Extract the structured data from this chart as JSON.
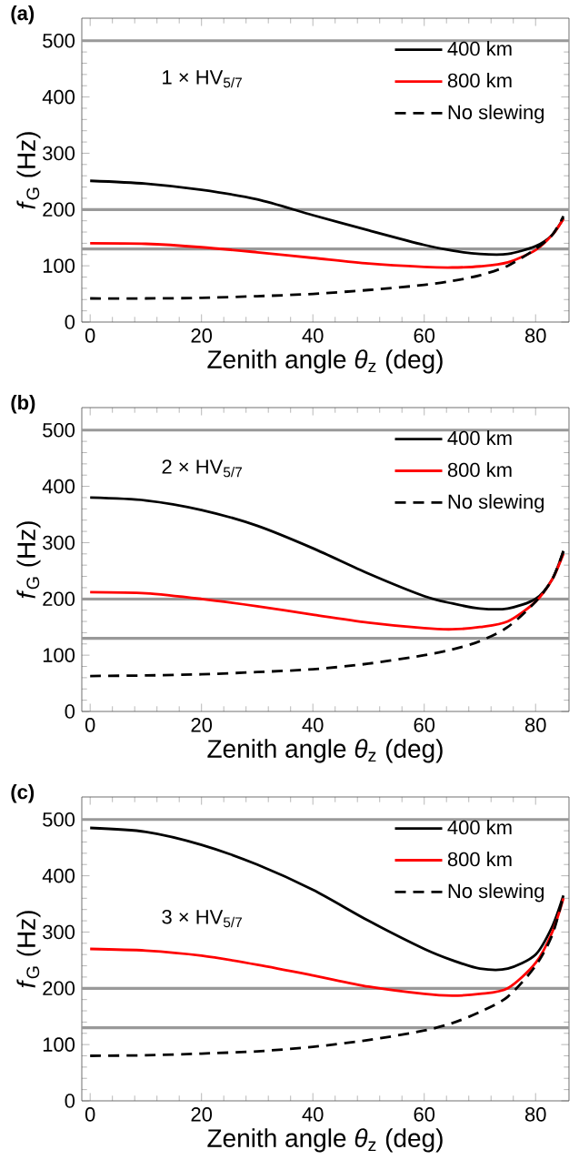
{
  "chart_data": [
    {
      "type": "line",
      "title": "(a)",
      "xlabel": "Zenith angle *θ*$_{z}$ (deg)",
      "ylabel": "*f*$_{G}$ (Hz)",
      "annotations": [
        "1 × HV$_{5/7}$"
      ],
      "xlim": [
        -1.5,
        86
      ],
      "ylim": [
        0,
        540
      ],
      "xticks": [
        0,
        20,
        40,
        60,
        80
      ],
      "yticks": [
        0,
        100,
        200,
        300,
        400,
        500
      ],
      "grid": false,
      "legend": "top right",
      "marker": "none",
      "ref_lines": [
        {
          "axis": "y",
          "value": 130,
          "color": "#999999"
        },
        {
          "axis": "y",
          "value": 200,
          "color": "#999999"
        },
        {
          "axis": "y",
          "value": 500,
          "color": "#999999"
        }
      ],
      "x": [
        0,
        10,
        20,
        30,
        40,
        50,
        60,
        65,
        70,
        75,
        80,
        83,
        85
      ],
      "series": [
        {
          "name": "400 km",
          "color": "#000000",
          "line_style": "solid",
          "values": [
            251,
            246,
            235,
            218,
            190,
            163,
            137,
            127,
            121,
            121,
            135,
            155,
            185
          ]
        },
        {
          "name": "800 km",
          "color": "#ff0000",
          "line_style": "solid",
          "values": [
            140,
            139,
            133,
            124,
            114,
            104,
            98,
            97,
            99,
            106,
            128,
            155,
            183
          ]
        },
        {
          "name": "No slewing",
          "color": "#000000",
          "line_style": "dashed",
          "values": [
            42,
            42,
            43,
            46,
            50,
            57,
            66,
            73,
            83,
            100,
            130,
            155,
            188
          ]
        }
      ]
    },
    {
      "type": "line",
      "title": "(b)",
      "xlabel": "Zenith angle *θ*$_{z}$ (deg)",
      "ylabel": "*f*$_{G}$ (Hz)",
      "annotations": [
        "2 × HV$_{5/7}$"
      ],
      "xlim": [
        -1.5,
        86
      ],
      "ylim": [
        0,
        540
      ],
      "xticks": [
        0,
        20,
        40,
        60,
        80
      ],
      "yticks": [
        0,
        100,
        200,
        300,
        400,
        500
      ],
      "grid": false,
      "legend": "top right",
      "marker": "none",
      "ref_lines": [
        {
          "axis": "y",
          "value": 130,
          "color": "#999999"
        },
        {
          "axis": "y",
          "value": 200,
          "color": "#999999"
        },
        {
          "axis": "y",
          "value": 500,
          "color": "#999999"
        }
      ],
      "x": [
        0,
        10,
        20,
        30,
        40,
        50,
        60,
        65,
        70,
        75,
        80,
        83,
        85
      ],
      "series": [
        {
          "name": "400 km",
          "color": "#000000",
          "line_style": "solid",
          "values": [
            380,
            375,
            358,
            330,
            290,
            245,
            205,
            192,
            183,
            183,
            200,
            235,
            285
          ]
        },
        {
          "name": "800 km",
          "color": "#ff0000",
          "line_style": "solid",
          "values": [
            212,
            210,
            200,
            187,
            172,
            158,
            148,
            146,
            150,
            160,
            195,
            235,
            280
          ]
        },
        {
          "name": "No slewing",
          "color": "#000000",
          "line_style": "dashed",
          "values": [
            63,
            64,
            66,
            70,
            75,
            85,
            100,
            110,
            125,
            150,
            195,
            235,
            285
          ]
        }
      ]
    },
    {
      "type": "line",
      "title": "(c)",
      "xlabel": "Zenith angle *θ*$_{z}$ (deg)",
      "ylabel": "*f*$_{G}$ (Hz)",
      "annotations": [
        "3 × HV$_{5/7}$"
      ],
      "xlim": [
        -1.5,
        86
      ],
      "ylim": [
        0,
        540
      ],
      "xticks": [
        0,
        20,
        40,
        60,
        80
      ],
      "yticks": [
        0,
        100,
        200,
        300,
        400,
        500
      ],
      "grid": false,
      "legend": "top right",
      "marker": "none",
      "ref_lines": [
        {
          "axis": "y",
          "value": 130,
          "color": "#999999"
        },
        {
          "axis": "y",
          "value": 200,
          "color": "#999999"
        },
        {
          "axis": "y",
          "value": 500,
          "color": "#999999"
        }
      ],
      "x": [
        0,
        10,
        20,
        30,
        40,
        50,
        60,
        65,
        70,
        75,
        80,
        83,
        85
      ],
      "series": [
        {
          "name": "400 km",
          "color": "#000000",
          "line_style": "solid",
          "values": [
            485,
            478,
            455,
            420,
            375,
            320,
            270,
            250,
            235,
            235,
            260,
            310,
            365
          ]
        },
        {
          "name": "800 km",
          "color": "#ff0000",
          "line_style": "solid",
          "values": [
            270,
            267,
            258,
            242,
            223,
            203,
            190,
            187,
            190,
            200,
            245,
            300,
            360
          ]
        },
        {
          "name": "No slewing",
          "color": "#000000",
          "line_style": "dashed",
          "values": [
            80,
            81,
            84,
            88,
            96,
            108,
            125,
            138,
            158,
            185,
            240,
            295,
            365
          ]
        }
      ]
    }
  ]
}
